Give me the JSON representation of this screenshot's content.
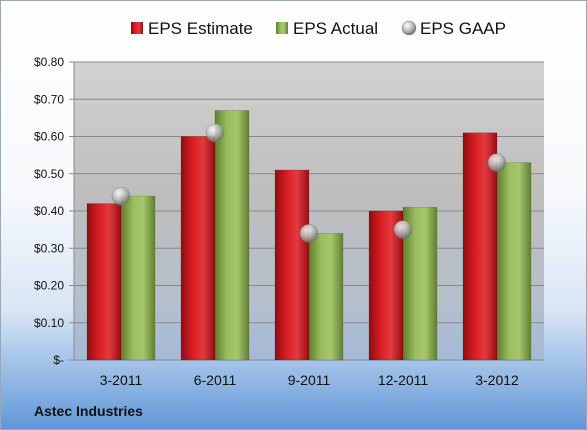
{
  "chart_data": {
    "type": "bar",
    "categories": [
      "3-2011",
      "6-2011",
      "9-2011",
      "12-2011",
      "3-2012"
    ],
    "series": [
      {
        "name": "EPS Estimate",
        "kind": "bar",
        "color": "#c8161d",
        "values": [
          0.42,
          0.6,
          0.51,
          0.4,
          0.61
        ]
      },
      {
        "name": "EPS Actual",
        "kind": "bar",
        "color": "#8db255",
        "values": [
          0.44,
          0.67,
          0.34,
          0.41,
          0.53
        ]
      },
      {
        "name": "EPS GAAP",
        "kind": "marker",
        "color": "#a9a9a9",
        "values": [
          0.44,
          0.61,
          0.34,
          0.35,
          0.53
        ]
      }
    ],
    "ylim": [
      0,
      0.8
    ],
    "yticks": [
      {
        "value": 0.0,
        "label": "$-"
      },
      {
        "value": 0.1,
        "label": "$0.10"
      },
      {
        "value": 0.2,
        "label": "$0.20"
      },
      {
        "value": 0.3,
        "label": "$0.30"
      },
      {
        "value": 0.4,
        "label": "$0.40"
      },
      {
        "value": 0.5,
        "label": "$0.50"
      },
      {
        "value": 0.6,
        "label": "$0.60"
      },
      {
        "value": 0.7,
        "label": "$0.70"
      },
      {
        "value": 0.8,
        "label": "$0.80"
      }
    ],
    "grid": true,
    "legend_position": "top",
    "footer": "Astec Industries"
  }
}
